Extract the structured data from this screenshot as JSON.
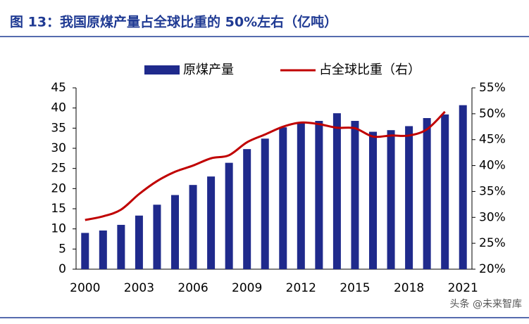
{
  "chart_data": {
    "type": "bar_line",
    "title": "图 13：我国原煤产量占全球比重的 50%左右（亿吨）",
    "watermark": "头条 @未来智库",
    "categories": [
      "2000",
      null,
      null,
      "2003",
      null,
      null,
      "2006",
      null,
      null,
      "2009",
      null,
      null,
      "2012",
      null,
      null,
      "2015",
      null,
      null,
      "2018",
      null,
      null,
      "2021"
    ],
    "series": [
      {
        "name": "原煤产量",
        "color": "#1f2a8c",
        "type": "bar",
        "values": [
          9.0,
          9.6,
          11.0,
          13.3,
          16.0,
          18.4,
          20.9,
          23.0,
          26.4,
          29.8,
          32.4,
          35.2,
          36.5,
          36.8,
          38.7,
          36.8,
          34.1,
          34.5,
          35.5,
          37.5,
          38.4,
          40.7
        ]
      },
      {
        "name": "占全球比重（右）",
        "color": "#c00000",
        "type": "line",
        "axis": "y2",
        "values": [
          29.5,
          30.2,
          31.5,
          34.5,
          37.0,
          38.8,
          40.0,
          41.4,
          42.0,
          44.5,
          46.0,
          47.5,
          48.3,
          48.0,
          47.3,
          47.2,
          45.6,
          45.8,
          45.8,
          47.0,
          50.4,
          null
        ]
      }
    ],
    "ylim": [
      0,
      45
    ],
    "yticks": [
      0,
      5,
      10,
      15,
      20,
      25,
      30,
      35,
      40,
      45
    ],
    "y2lim": [
      20,
      55
    ],
    "y2ticks": [
      {
        "value": 20,
        "label": "20%"
      },
      {
        "value": 25,
        "label": "25%"
      },
      {
        "value": 30,
        "label": "30%"
      },
      {
        "value": 35,
        "label": "35%"
      },
      {
        "value": 40,
        "label": "40%"
      },
      {
        "value": 45,
        "label": "45%"
      },
      {
        "value": 50,
        "label": "50%"
      },
      {
        "value": 55,
        "label": "55%"
      }
    ],
    "legend": "top"
  }
}
